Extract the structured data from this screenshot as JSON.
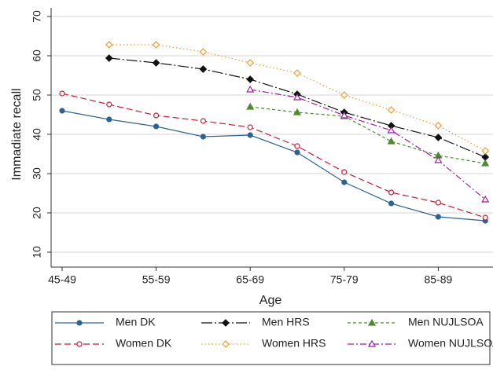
{
  "chart_data": {
    "type": "line",
    "y_label": "Immadiate recall",
    "x_label": "Age",
    "categories": [
      "45-49",
      null,
      "55-59",
      null,
      "65-69",
      null,
      "75-79",
      null,
      "85-89",
      null
    ],
    "ylim": [
      10,
      70
    ],
    "yticks": [
      10,
      20,
      30,
      40,
      50,
      60,
      70
    ],
    "grid": true,
    "legend": "bottom",
    "series": [
      {
        "name": "Men DK",
        "color": "#2d6391",
        "line_style": "solid",
        "marker": "circle",
        "filled": true,
        "values": [
          46,
          43.8,
          42,
          39.4,
          39.8,
          35.4,
          27.8,
          22.4,
          19,
          18
        ]
      },
      {
        "name": "Men HRS",
        "color": "#111111",
        "line_style": "longdashdot",
        "marker": "diamond",
        "filled": true,
        "values": [
          null,
          59.4,
          58.2,
          56.6,
          54,
          50.2,
          45.6,
          42.2,
          39.2,
          34.2
        ]
      },
      {
        "name": "Men NUJLSOA",
        "color": "#4e8a2e",
        "line_style": "shortdash",
        "marker": "triangle",
        "filled": true,
        "values": [
          null,
          null,
          null,
          null,
          47,
          45.6,
          44.6,
          38.2,
          34.6,
          32.6
        ]
      },
      {
        "name": "Women DK",
        "color": "#c41e3a",
        "line_style": "dashed",
        "marker": "circle",
        "filled": false,
        "values": [
          50.4,
          47.6,
          44.8,
          43.4,
          41.8,
          37,
          30.4,
          25.2,
          22.6,
          18.8
        ]
      },
      {
        "name": "Women HRS",
        "color": "#f09a2a",
        "line_style": "dotted",
        "marker": "diamond",
        "filled": false,
        "values": [
          null,
          62.8,
          62.8,
          61,
          58.2,
          55.6,
          50,
          46.2,
          42.2,
          35.8
        ]
      },
      {
        "name": "Women NUJLSOA",
        "color": "#a01ea0",
        "line_style": "dashdot",
        "marker": "triangle",
        "filled": false,
        "values": [
          null,
          null,
          null,
          null,
          51.4,
          49.4,
          44.8,
          41,
          33.4,
          23.4
        ]
      }
    ]
  }
}
